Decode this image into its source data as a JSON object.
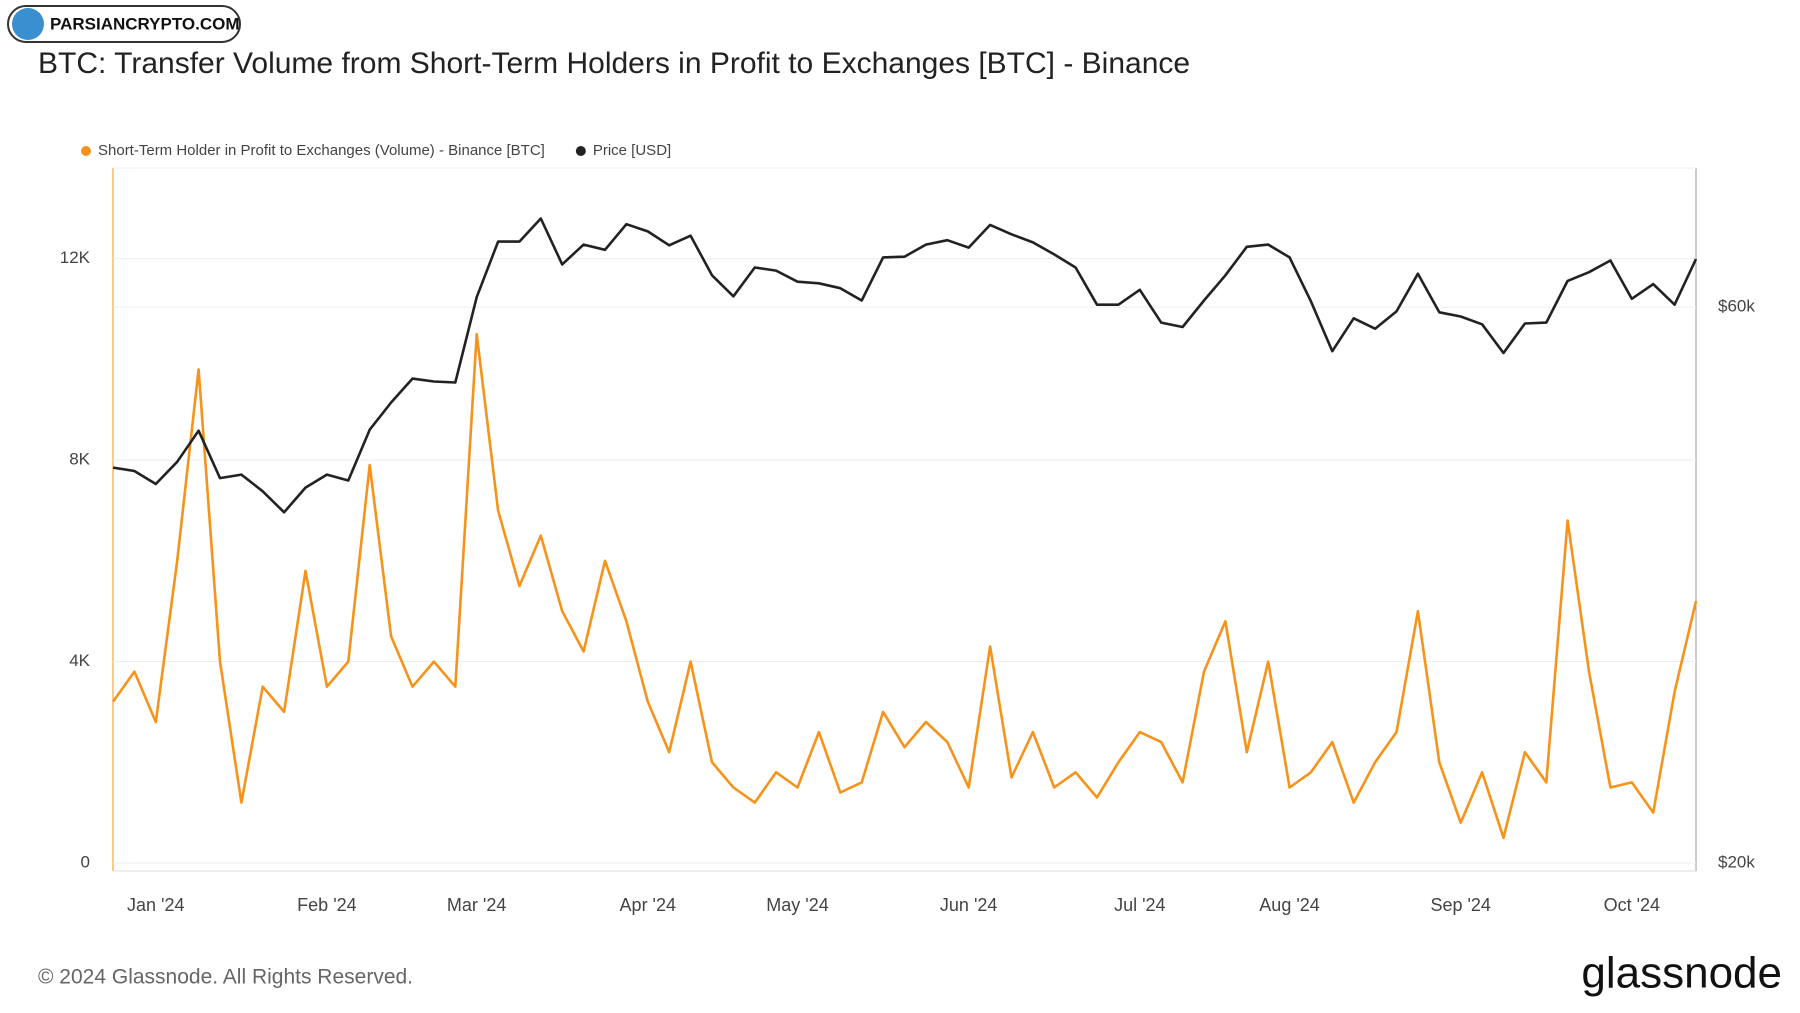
{
  "watermark": "PARSIANCRYPTO.COM",
  "footer": {
    "copyright": "© 2024 Glassnode. All Rights Reserved.",
    "logo": "glassnode"
  },
  "chart_data": {
    "type": "line",
    "title": "BTC: Transfer Volume from Short-Term Holders in Profit to Exchanges [BTC] - Binance",
    "categories": [
      null,
      null,
      "Jan '24",
      null,
      null,
      null,
      null,
      null,
      null,
      null,
      "Feb '24",
      null,
      null,
      null,
      null,
      null,
      null,
      "Mar '24",
      null,
      null,
      null,
      null,
      null,
      null,
      null,
      "Apr '24",
      null,
      null,
      null,
      null,
      null,
      null,
      "May '24",
      null,
      null,
      null,
      null,
      null,
      null,
      null,
      "Jun '24",
      null,
      null,
      null,
      null,
      null,
      null,
      null,
      "Jul '24",
      null,
      null,
      null,
      null,
      null,
      null,
      "Aug '24",
      null,
      null,
      null,
      null,
      null,
      null,
      null,
      "Sep '24",
      null,
      null,
      null,
      null,
      null,
      null,
      null,
      "Oct '24",
      null,
      null,
      null
    ],
    "series": [
      {
        "name": "Short-Term Holder in Profit to Exchanges (Volume) - Binance [BTC]",
        "color": "#f7931a",
        "values": [
          3200,
          3800,
          2800,
          6000,
          9800,
          4000,
          1200,
          3500,
          3000,
          5800,
          3500,
          4000,
          7900,
          4500,
          3500,
          4000,
          3500,
          10500,
          7000,
          5500,
          6500,
          5000,
          4200,
          6000,
          4800,
          3200,
          2200,
          4000,
          2000,
          1500,
          1200,
          1800,
          1500,
          2600,
          1400,
          1600,
          3000,
          2300,
          2800,
          2400,
          1500,
          4300,
          1700,
          2600,
          1500,
          1800,
          1300,
          2000,
          2600,
          2400,
          1600,
          3800,
          4800,
          2200,
          4000,
          1500,
          1800,
          2400,
          1200,
          2000,
          2600,
          5000,
          2000,
          800,
          1800,
          500,
          2200,
          1600,
          6800,
          3800,
          1500,
          1600,
          1000,
          3400,
          5200
        ]
      },
      {
        "name": "Price [USD]",
        "color": "#222222",
        "axis": "y2",
        "values": [
          43700,
          43400,
          42300,
          44200,
          47000,
          42800,
          43100,
          41700,
          40000,
          42000,
          43100,
          42600,
          47100,
          49700,
          52100,
          51800,
          51700,
          61200,
          68300,
          68300,
          71500,
          65300,
          67900,
          67200,
          70700,
          69700,
          67800,
          69100,
          63900,
          61300,
          64900,
          64500,
          63100,
          62900,
          62300,
          60800,
          66200,
          66300,
          67900,
          68500,
          67500,
          70600,
          69300,
          68200,
          66600,
          64900,
          60300,
          60300,
          62100,
          58200,
          57700,
          60800,
          63900,
          67600,
          67900,
          66200,
          60700,
          55000,
          58700,
          57500,
          59500,
          64100,
          59400,
          58900,
          58000,
          54800,
          58100,
          58200,
          63200,
          64300,
          65800,
          61000,
          62800,
          60300,
          66000
        ]
      }
    ],
    "ylim": [
      0,
      13800
    ],
    "yticks": [
      0,
      {
        "value": 4000,
        "label": "4K"
      },
      {
        "value": 8000,
        "label": "8K"
      },
      {
        "value": 12000,
        "label": "12K"
      }
    ],
    "y2lim": [
      20000,
      79000
    ],
    "y2log": true,
    "y2ticks": [
      {
        "value": 20000,
        "label": "$20k"
      },
      {
        "value": 60000,
        "label": "$60k"
      }
    ],
    "grid": true
  }
}
